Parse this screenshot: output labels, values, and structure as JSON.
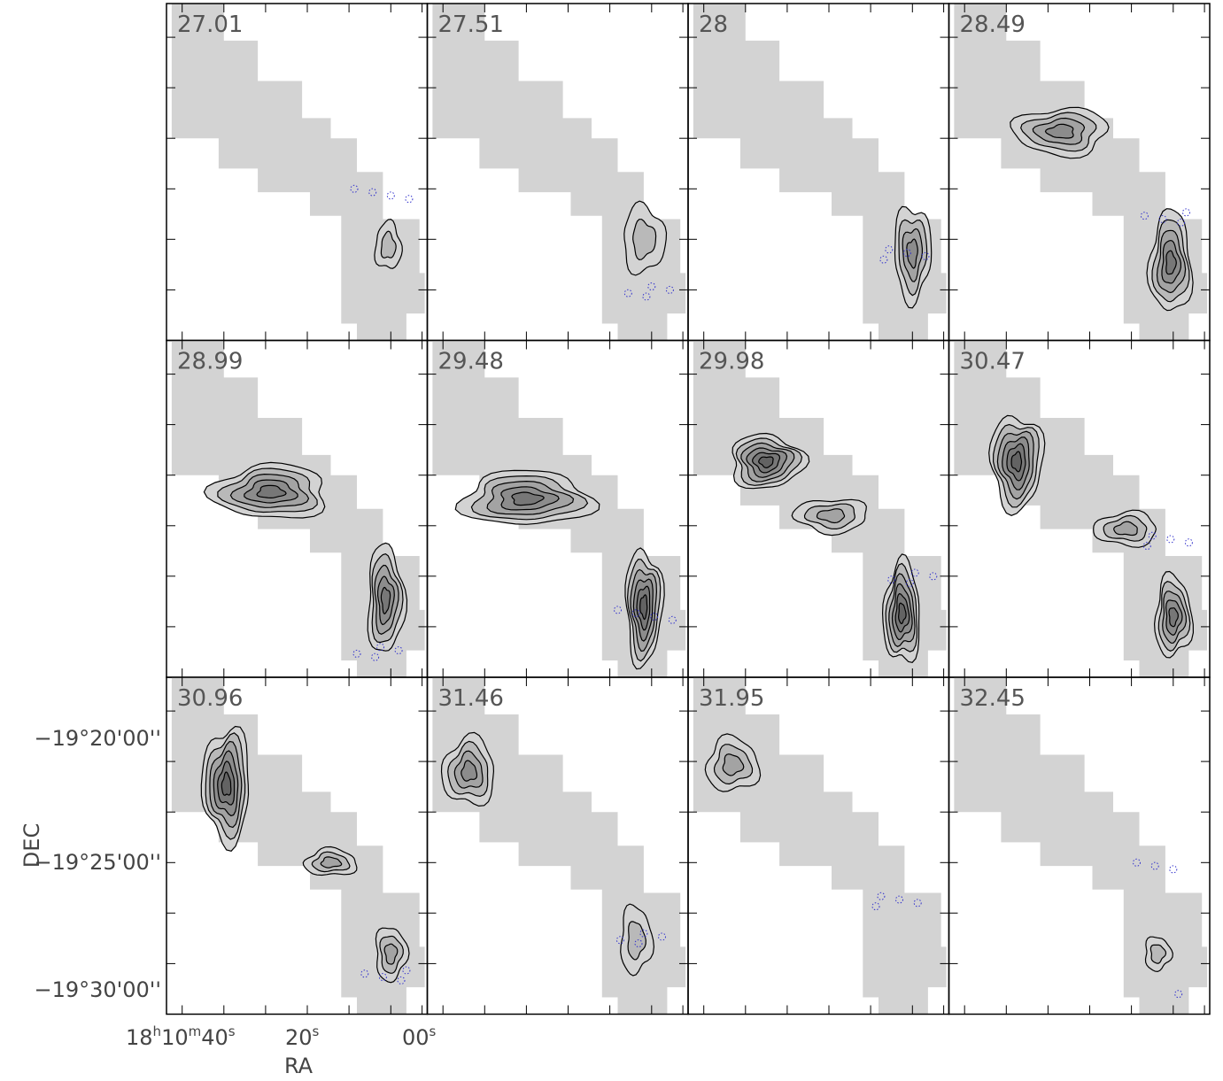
{
  "chart_data": {
    "type": "contour",
    "layout": {
      "rows": 3,
      "cols": 4
    },
    "xlabel": "RA",
    "ylabel": "DEC",
    "x_ticks": [
      {
        "h": "18",
        "m": "10",
        "s": "40"
      },
      {
        "s": "20"
      },
      {
        "s": "00"
      }
    ],
    "y_ticks": [
      "−19°20'00''",
      "−19°25'00''",
      "−19°30'00''"
    ],
    "colors": {
      "coverage": "#d3d3d3",
      "contour": "#000000",
      "negative_contour": "#3333cc",
      "fill_levels": [
        "#d3d3d3",
        "#b9b9b9",
        "#a3a3a3",
        "#8c8c8c",
        "#777777",
        "#636363"
      ]
    },
    "panels": [
      {
        "label": "27.01",
        "clumps": [
          {
            "cx": 0.85,
            "cy": 0.72,
            "a": 0.05,
            "b": 0.07,
            "peak": 1
          }
        ]
      },
      {
        "label": "27.51",
        "clumps": [
          {
            "cx": 0.83,
            "cy": 0.7,
            "a": 0.08,
            "b": 0.1,
            "peak": 1
          }
        ]
      },
      {
        "label": "28",
        "clumps": [
          {
            "cx": 0.86,
            "cy": 0.74,
            "a": 0.07,
            "b": 0.14,
            "peak": 3
          }
        ]
      },
      {
        "label": "28.49",
        "clumps": [
          {
            "cx": 0.43,
            "cy": 0.38,
            "a": 0.18,
            "b": 0.07,
            "peak": 3
          },
          {
            "cx": 0.85,
            "cy": 0.77,
            "a": 0.08,
            "b": 0.15,
            "peak": 4
          }
        ]
      },
      {
        "label": "28.99",
        "clumps": [
          {
            "cx": 0.4,
            "cy": 0.45,
            "a": 0.22,
            "b": 0.08,
            "peak": 4
          },
          {
            "cx": 0.84,
            "cy": 0.77,
            "a": 0.07,
            "b": 0.16,
            "peak": 4
          }
        ]
      },
      {
        "label": "29.48",
        "clumps": [
          {
            "cx": 0.38,
            "cy": 0.47,
            "a": 0.25,
            "b": 0.08,
            "peak": 4
          },
          {
            "cx": 0.83,
            "cy": 0.79,
            "a": 0.07,
            "b": 0.17,
            "peak": 5
          }
        ]
      },
      {
        "label": "29.98",
        "clumps": [
          {
            "cx": 0.3,
            "cy": 0.36,
            "a": 0.14,
            "b": 0.08,
            "peak": 5
          },
          {
            "cx": 0.55,
            "cy": 0.52,
            "a": 0.14,
            "b": 0.05,
            "peak": 2
          },
          {
            "cx": 0.82,
            "cy": 0.81,
            "a": 0.07,
            "b": 0.15,
            "peak": 5
          }
        ]
      },
      {
        "label": "30.47",
        "clumps": [
          {
            "cx": 0.26,
            "cy": 0.36,
            "a": 0.1,
            "b": 0.14,
            "peak": 5
          },
          {
            "cx": 0.68,
            "cy": 0.56,
            "a": 0.12,
            "b": 0.05,
            "peak": 2
          },
          {
            "cx": 0.86,
            "cy": 0.82,
            "a": 0.07,
            "b": 0.12,
            "peak": 4
          }
        ]
      },
      {
        "label": "30.96",
        "clumps": [
          {
            "cx": 0.23,
            "cy": 0.32,
            "a": 0.09,
            "b": 0.17,
            "peak": 5
          },
          {
            "cx": 0.63,
            "cy": 0.55,
            "a": 0.1,
            "b": 0.04,
            "peak": 2
          },
          {
            "cx": 0.86,
            "cy": 0.82,
            "a": 0.06,
            "b": 0.08,
            "peak": 2
          }
        ]
      },
      {
        "label": "31.46",
        "clumps": [
          {
            "cx": 0.16,
            "cy": 0.28,
            "a": 0.1,
            "b": 0.1,
            "peak": 3
          },
          {
            "cx": 0.8,
            "cy": 0.78,
            "a": 0.06,
            "b": 0.1,
            "peak": 1
          }
        ]
      },
      {
        "label": "31.95",
        "clumps": [
          {
            "cx": 0.17,
            "cy": 0.26,
            "a": 0.1,
            "b": 0.08,
            "peak": 2
          }
        ]
      },
      {
        "label": "32.45",
        "clumps": [
          {
            "cx": 0.8,
            "cy": 0.82,
            "a": 0.05,
            "b": 0.05,
            "peak": 1
          }
        ]
      }
    ]
  }
}
